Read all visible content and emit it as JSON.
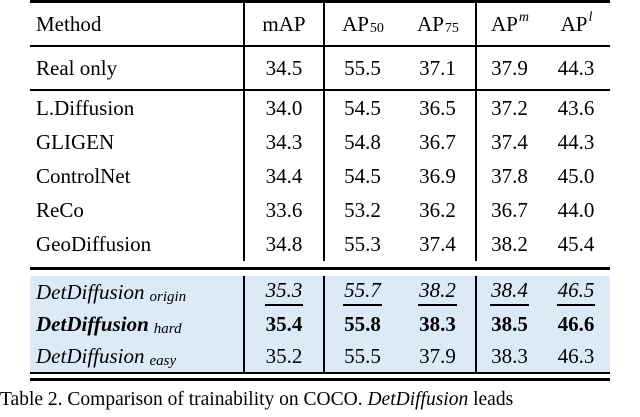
{
  "colors": {
    "highlight_bg": "#dce9f7",
    "rule": "#000000",
    "text": "#000000"
  },
  "header": {
    "method": "Method",
    "map": "mAP",
    "ap50_base": "AP",
    "ap50_sub": "50",
    "ap75_base": "AP",
    "ap75_sub": "75",
    "apm_base": "AP",
    "apm_sup": "m",
    "apl_base": "AP",
    "apl_sup": "l"
  },
  "rows": {
    "real_only": {
      "method": "Real only",
      "values": [
        "34.5",
        "55.5",
        "37.1",
        "37.9",
        "44.3"
      ]
    },
    "baselines": [
      {
        "method": "L.Diffusion",
        "values": [
          "34.0",
          "54.5",
          "36.5",
          "37.2",
          "43.6"
        ]
      },
      {
        "method": "GLIGEN",
        "values": [
          "34.3",
          "54.8",
          "36.7",
          "37.4",
          "44.3"
        ]
      },
      {
        "method": "ControlNet",
        "values": [
          "34.4",
          "54.5",
          "36.9",
          "37.8",
          "45.0"
        ]
      },
      {
        "method": "ReCo",
        "values": [
          "33.6",
          "53.2",
          "36.2",
          "36.7",
          "44.0"
        ]
      },
      {
        "method": "GeoDiffusion",
        "values": [
          "34.8",
          "55.3",
          "37.4",
          "38.2",
          "45.4"
        ]
      }
    ],
    "ours": [
      {
        "method_base": "DetDiffusion",
        "method_sub": "origin",
        "emphasis": "second-best-underline-italic",
        "values": [
          "35.3",
          "55.7",
          "38.2",
          "38.4",
          "46.5"
        ]
      },
      {
        "method_base": "DetDiffusion",
        "method_sub": "hard",
        "emphasis": "best-bold",
        "values": [
          "35.4",
          "55.8",
          "38.3",
          "38.5",
          "46.6"
        ]
      },
      {
        "method_base": "DetDiffusion",
        "method_sub": "easy",
        "emphasis": "none",
        "values": [
          "35.2",
          "55.5",
          "37.9",
          "38.3",
          "46.3"
        ]
      }
    ]
  },
  "caption": {
    "prefix": "Table 2. Comparison of trainability on COCO. ",
    "italic": "DetDiffusion",
    "suffix": " leads"
  }
}
